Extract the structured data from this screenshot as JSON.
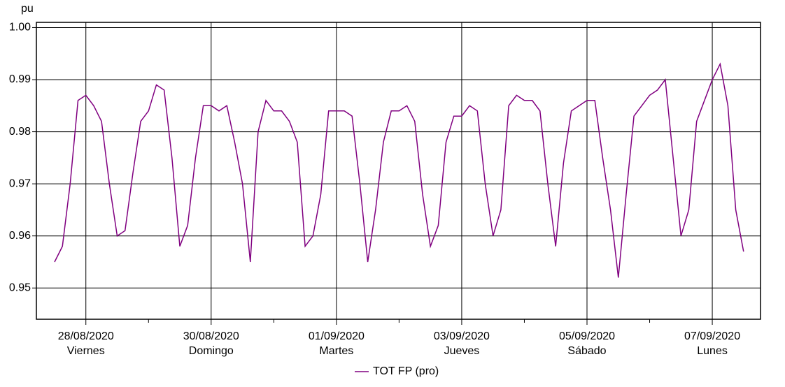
{
  "chart_data": {
    "type": "line",
    "ylabel": "pu",
    "x": [
      -0.5,
      -0.375,
      -0.25,
      -0.125,
      0,
      0.125,
      0.25,
      0.375,
      0.5,
      0.625,
      0.75,
      0.875,
      1,
      1.125,
      1.25,
      1.375,
      1.5,
      1.625,
      1.75,
      1.875,
      2,
      2.125,
      2.25,
      2.375,
      2.5,
      2.625,
      2.75,
      2.875,
      3,
      3.125,
      3.25,
      3.375,
      3.5,
      3.625,
      3.75,
      3.875,
      4,
      4.125,
      4.25,
      4.375,
      4.5,
      4.625,
      4.75,
      4.875,
      5,
      5.125,
      5.25,
      5.375,
      5.5,
      5.625,
      5.75,
      5.875,
      6,
      6.125,
      6.25,
      6.375,
      6.5,
      6.625,
      6.75,
      6.875,
      7,
      7.125,
      7.25,
      7.375,
      7.5,
      7.625,
      7.75,
      7.875,
      8,
      8.125,
      8.25,
      8.375,
      8.5,
      8.625,
      8.75,
      8.875,
      9,
      9.125,
      9.25,
      9.375,
      9.5,
      9.625,
      9.75,
      9.875,
      10,
      10.125,
      10.25,
      10.375,
      10.5
    ],
    "series": [
      {
        "name": "TOT FP (pro)",
        "color": "#800080",
        "values": [
          0.955,
          0.958,
          0.97,
          0.986,
          0.987,
          0.985,
          0.982,
          0.97,
          0.96,
          0.961,
          0.972,
          0.982,
          0.984,
          0.989,
          0.988,
          0.975,
          0.958,
          0.962,
          0.975,
          0.985,
          0.985,
          0.984,
          0.985,
          0.978,
          0.97,
          0.955,
          0.98,
          0.986,
          0.984,
          0.984,
          0.982,
          0.978,
          0.958,
          0.96,
          0.968,
          0.984,
          0.984,
          0.984,
          0.983,
          0.97,
          0.955,
          0.965,
          0.978,
          0.984,
          0.984,
          0.985,
          0.982,
          0.968,
          0.958,
          0.962,
          0.978,
          0.983,
          0.983,
          0.985,
          0.984,
          0.97,
          0.96,
          0.965,
          0.985,
          0.987,
          0.986,
          0.986,
          0.984,
          0.97,
          0.958,
          0.974,
          0.984,
          0.985,
          0.986,
          0.986,
          0.975,
          0.965,
          0.952,
          0.968,
          0.983,
          0.985,
          0.987,
          0.988,
          0.99,
          0.975,
          0.96,
          0.965,
          0.982,
          0.986,
          0.99,
          0.993,
          0.985,
          0.965,
          0.957
        ]
      }
    ],
    "xlim": [
      -0.79,
      10.77
    ],
    "xticks": [
      {
        "value": 0,
        "label": "28/08/2020"
      },
      {
        "value": 2,
        "label": "30/08/2020"
      },
      {
        "value": 4,
        "label": "01/09/2020"
      },
      {
        "value": 6,
        "label": "03/09/2020"
      },
      {
        "value": 8,
        "label": "05/09/2020"
      },
      {
        "value": 10,
        "label": "07/09/2020"
      }
    ],
    "xtick_days": [
      "Viernes",
      "Domingo",
      "Martes",
      "Jueves",
      "Sábado",
      "Lunes"
    ],
    "xminorticks": [
      1,
      3,
      5,
      7,
      9
    ],
    "ylim": [
      0.944,
      1.001
    ],
    "yticks": [
      0.95,
      0.96,
      0.97,
      0.98,
      0.99,
      {
        "value": 1,
        "label": "1.00"
      }
    ],
    "grid": true
  }
}
